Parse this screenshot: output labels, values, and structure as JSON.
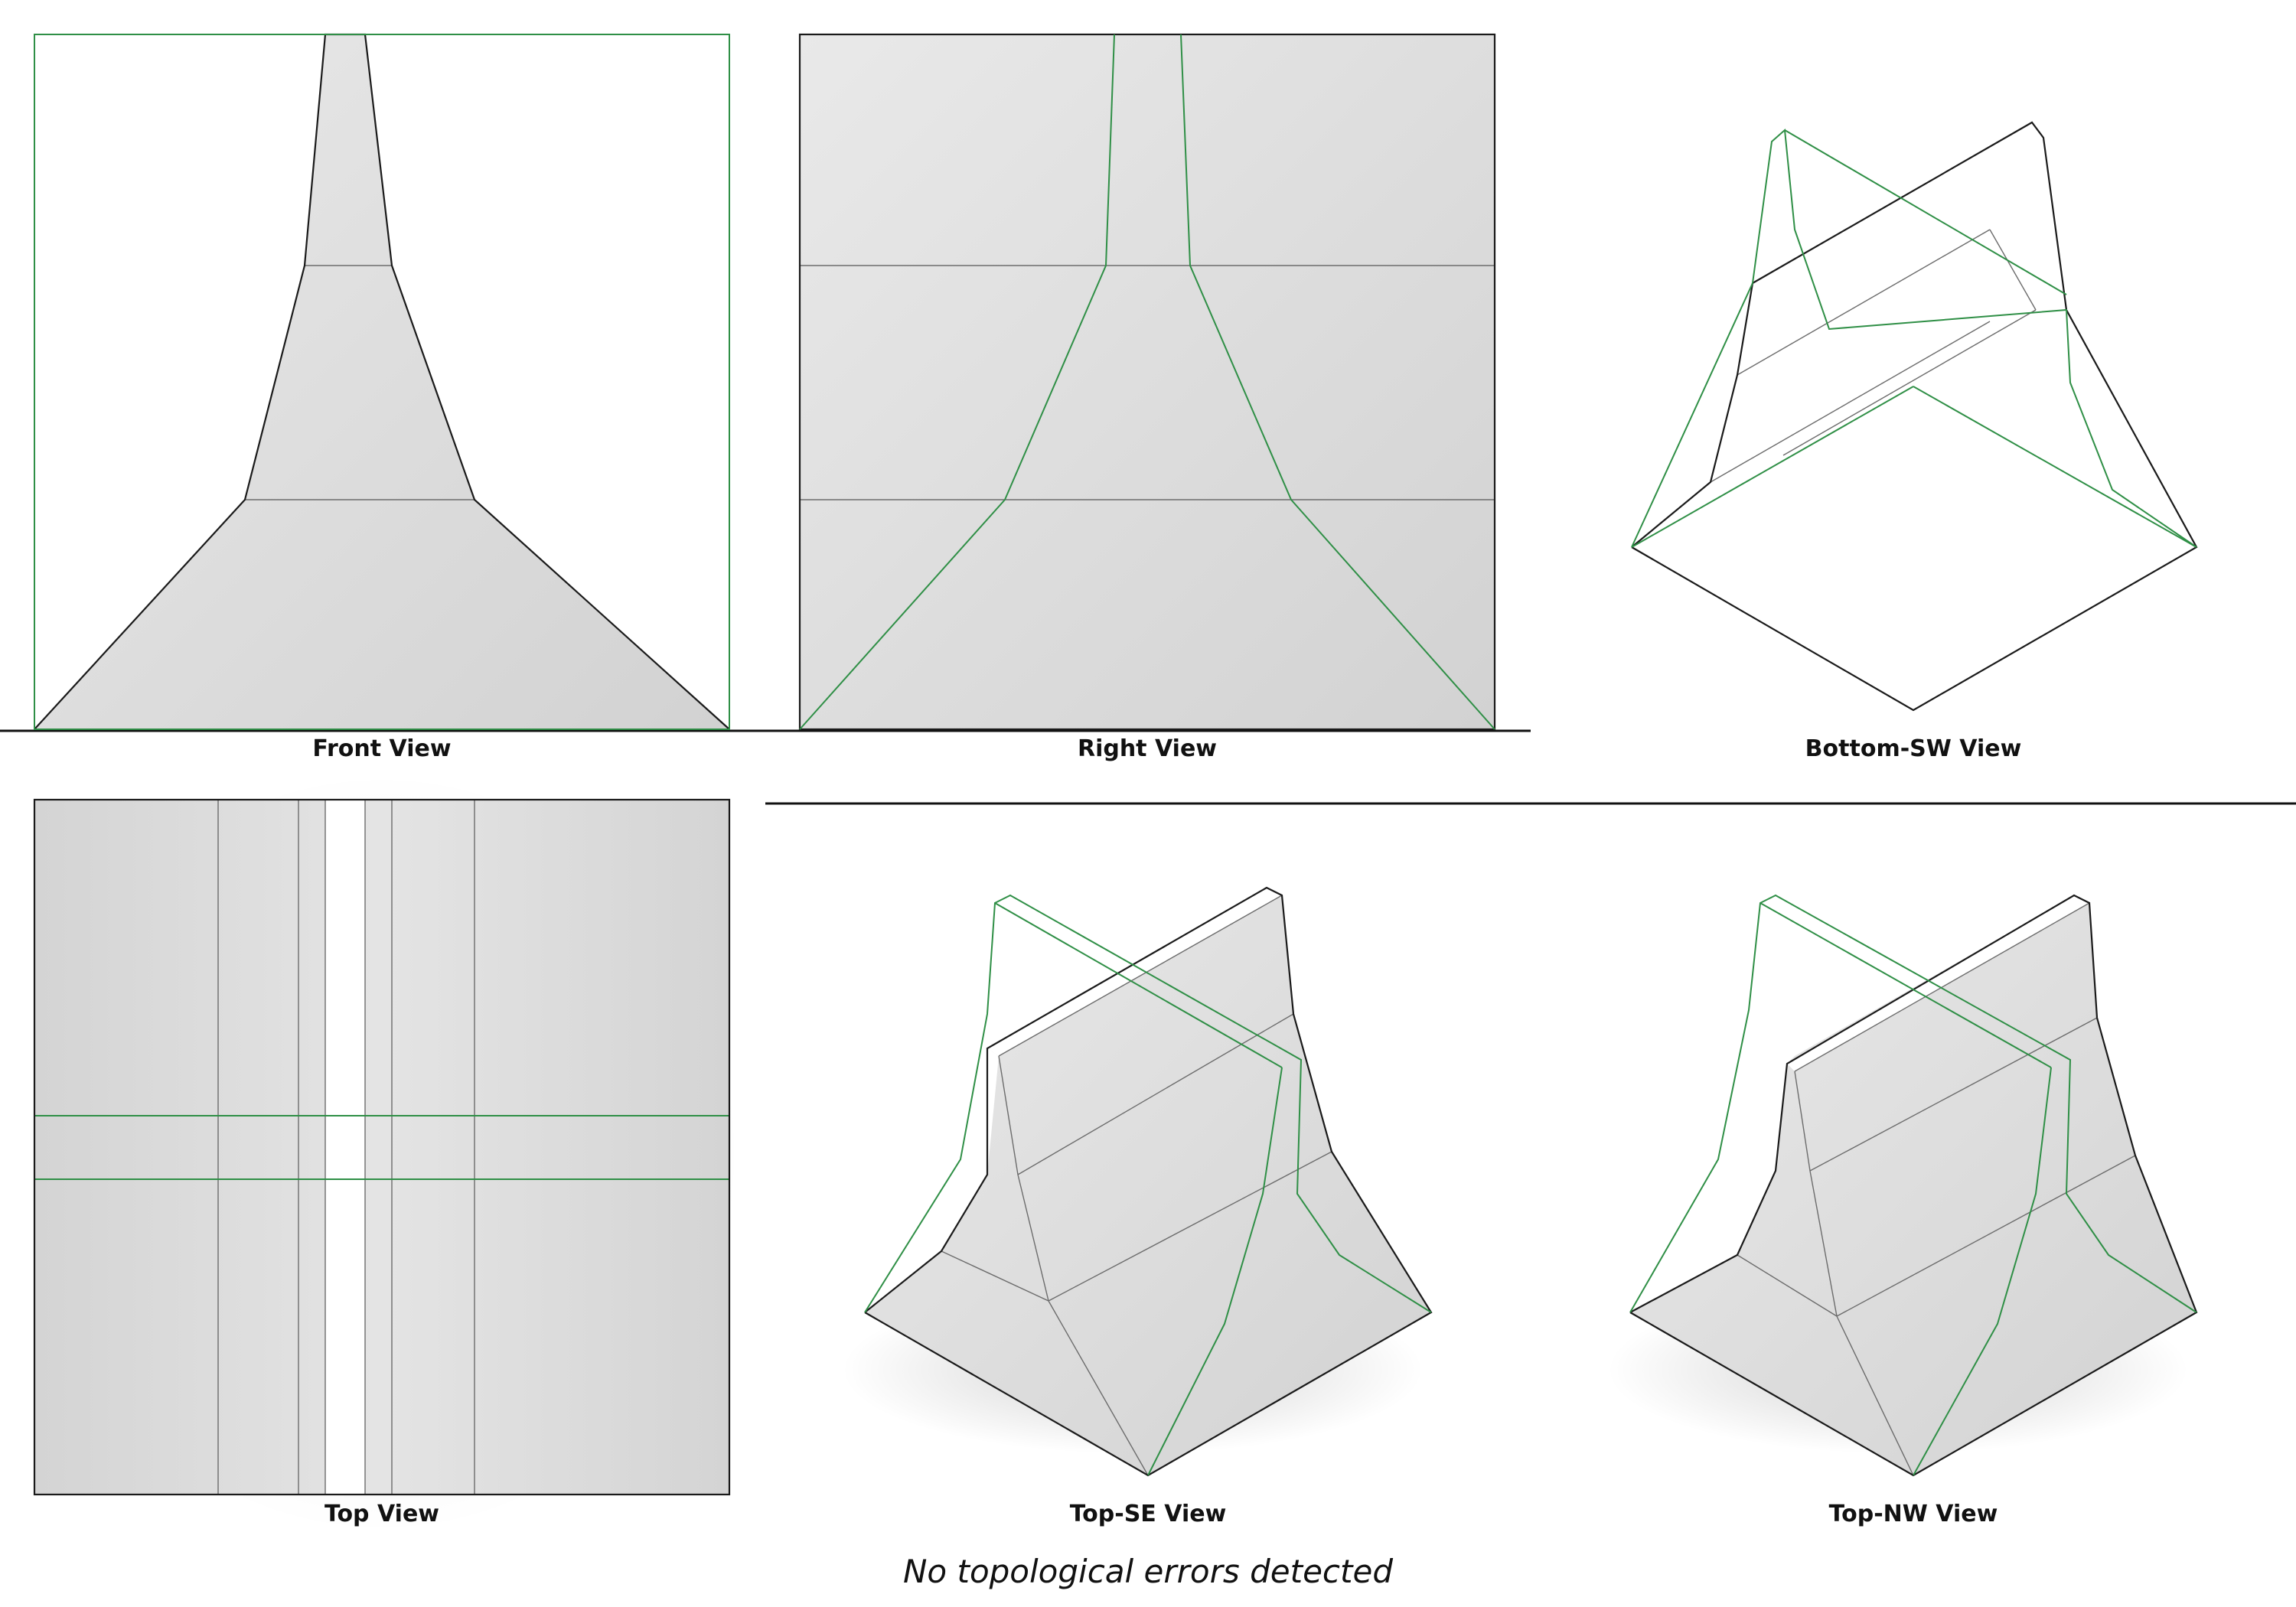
{
  "views": {
    "front": "Front View",
    "right": "Right View",
    "bottom_sw": "Bottom-SW View",
    "top": "Top View",
    "top_se": "Top-SE View",
    "top_nw": "Top-NW View"
  },
  "status": "No topological errors detected",
  "colors": {
    "edge": "#1a1a1a",
    "hidden_edge": "#2f8f46",
    "face": "#d9d9d9"
  }
}
